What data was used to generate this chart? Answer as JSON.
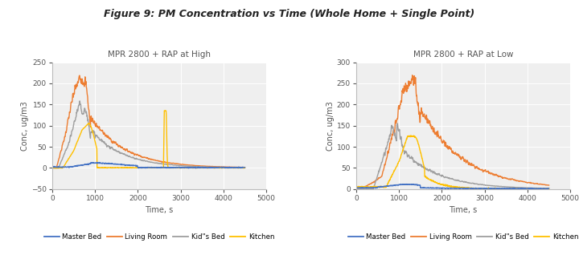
{
  "title": "Figure 9: PM Concentration vs Time (Whole Home + Single Point)",
  "title_fontsize": 9,
  "title_fontweight": "bold",
  "title_fontstyle": "italic",
  "background_color": "#efefef",
  "fig_background": "#ffffff",
  "left_plot": {
    "title": "MPR 2800 + RAP at High",
    "xlabel": "Time, s",
    "ylabel": "Conc, ug/m3",
    "xlim": [
      0,
      5000
    ],
    "ylim": [
      -50,
      250
    ],
    "yticks": [
      -50,
      0,
      50,
      100,
      150,
      200,
      250
    ],
    "xticks": [
      0,
      1000,
      2000,
      3000,
      4000,
      5000
    ]
  },
  "right_plot": {
    "title": "MPR 2800 + RAP at Low",
    "xlabel": "Time, s",
    "ylabel": "Conc, ug/m3",
    "xlim": [
      0,
      5000
    ],
    "ylim": [
      0,
      300
    ],
    "yticks": [
      0,
      50,
      100,
      150,
      200,
      250,
      300
    ],
    "xticks": [
      0,
      1000,
      2000,
      3000,
      4000,
      5000
    ]
  },
  "colors": {
    "master_bed": "#4472c4",
    "living_room": "#ed7d31",
    "kids_bed": "#9e9e9e",
    "kitchen": "#ffc000"
  },
  "legend_labels": [
    "Master Bed",
    "Living Room",
    "Kid\"s Bed",
    "Kitchen"
  ],
  "linewidth": 1.0
}
